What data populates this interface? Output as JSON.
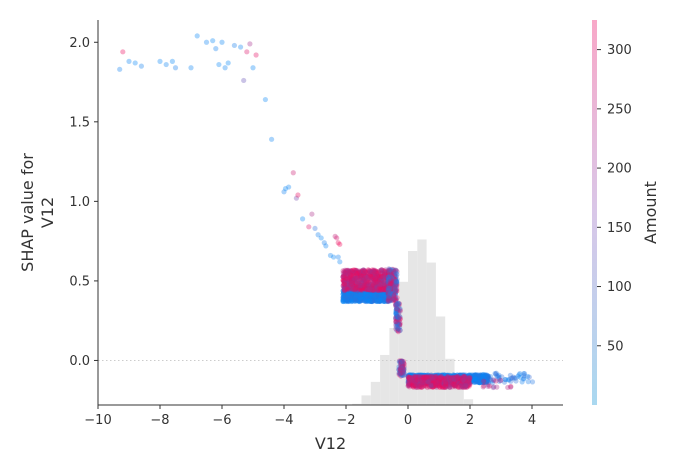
{
  "chart_data": {
    "type": "scatter",
    "title": "",
    "xlabel": "V12",
    "ylabel_lines": [
      "SHAP value for",
      "V12"
    ],
    "xlim": [
      -10,
      5
    ],
    "ylim": [
      -0.28,
      2.14
    ],
    "x_ticks": [
      -10,
      -8,
      -6,
      -4,
      -2,
      0,
      2,
      4
    ],
    "y_ticks": [
      0.0,
      0.5,
      1.0,
      1.5,
      2.0
    ],
    "x_tick_labels": [
      "−10",
      "−8",
      "−6",
      "−4",
      "−2",
      "0",
      "2",
      "4"
    ],
    "y_tick_labels": [
      "0.0",
      "0.5",
      "1.0",
      "1.5",
      "2.0"
    ],
    "zero_line": true,
    "colorbar": {
      "label": "Amount",
      "range": [
        0,
        325
      ],
      "ticks": [
        50,
        100,
        150,
        200,
        250,
        300
      ],
      "tick_labels": [
        "50",
        "100",
        "150",
        "200",
        "250",
        "300"
      ],
      "colors": {
        "low": "#008bfb",
        "high": "#ff0052"
      }
    },
    "histogram": {
      "bins": [
        {
          "x0": -1.8,
          "x1": -1.5,
          "h": 0.003
        },
        {
          "x0": -1.5,
          "x1": -1.2,
          "h": 0.025
        },
        {
          "x0": -1.2,
          "x1": -0.9,
          "h": 0.06
        },
        {
          "x0": -0.9,
          "x1": -0.6,
          "h": 0.13
        },
        {
          "x0": -0.6,
          "x1": -0.3,
          "h": 0.2
        },
        {
          "x0": -0.3,
          "x1": 0.0,
          "h": 0.32
        },
        {
          "x0": 0.0,
          "x1": 0.3,
          "h": 0.4
        },
        {
          "x0": 0.3,
          "x1": 0.6,
          "h": 0.43
        },
        {
          "x0": 0.6,
          "x1": 0.9,
          "h": 0.37
        },
        {
          "x0": 0.9,
          "x1": 1.2,
          "h": 0.23
        },
        {
          "x0": 1.2,
          "x1": 1.5,
          "h": 0.12
        },
        {
          "x0": 1.5,
          "x1": 1.8,
          "h": 0.05
        },
        {
          "x0": 1.8,
          "x1": 2.1,
          "h": 0.015
        }
      ]
    },
    "points": [
      {
        "x": -9.3,
        "y": 1.83,
        "amount": 20
      },
      {
        "x": -9.2,
        "y": 1.94,
        "amount": 300
      },
      {
        "x": -9.0,
        "y": 1.88,
        "amount": 15
      },
      {
        "x": -8.8,
        "y": 1.87,
        "amount": 10
      },
      {
        "x": -8.6,
        "y": 1.85,
        "amount": 25
      },
      {
        "x": -8.0,
        "y": 1.88,
        "amount": 12
      },
      {
        "x": -7.8,
        "y": 1.86,
        "amount": 18
      },
      {
        "x": -7.6,
        "y": 1.88,
        "amount": 8
      },
      {
        "x": -7.5,
        "y": 1.84,
        "amount": 30
      },
      {
        "x": -7.0,
        "y": 1.84,
        "amount": 14
      },
      {
        "x": -6.8,
        "y": 2.04,
        "amount": 10
      },
      {
        "x": -6.5,
        "y": 2.0,
        "amount": 16
      },
      {
        "x": -6.3,
        "y": 2.01,
        "amount": 9
      },
      {
        "x": -6.2,
        "y": 1.96,
        "amount": 22
      },
      {
        "x": -6.1,
        "y": 1.86,
        "amount": 11
      },
      {
        "x": -6.0,
        "y": 2.0,
        "amount": 13
      },
      {
        "x": -5.9,
        "y": 1.84,
        "amount": 19
      },
      {
        "x": -5.8,
        "y": 1.87,
        "amount": 7
      },
      {
        "x": -5.6,
        "y": 1.98,
        "amount": 28
      },
      {
        "x": -5.4,
        "y": 1.97,
        "amount": 17
      },
      {
        "x": -5.3,
        "y": 1.76,
        "amount": 130
      },
      {
        "x": -5.2,
        "y": 1.94,
        "amount": 280
      },
      {
        "x": -5.1,
        "y": 1.99,
        "amount": 210
      },
      {
        "x": -5.0,
        "y": 1.84,
        "amount": 10
      },
      {
        "x": -4.9,
        "y": 1.92,
        "amount": 290
      },
      {
        "x": -4.6,
        "y": 1.64,
        "amount": 12
      },
      {
        "x": -4.4,
        "y": 1.39,
        "amount": 15
      },
      {
        "x": -4.0,
        "y": 1.06,
        "amount": 20
      },
      {
        "x": -3.95,
        "y": 1.08,
        "amount": 9
      },
      {
        "x": -3.85,
        "y": 1.09,
        "amount": 14
      },
      {
        "x": -3.7,
        "y": 1.18,
        "amount": 260
      },
      {
        "x": -3.6,
        "y": 1.02,
        "amount": 150
      },
      {
        "x": -3.55,
        "y": 1.04,
        "amount": 300
      },
      {
        "x": -3.4,
        "y": 0.89,
        "amount": 10
      },
      {
        "x": -3.2,
        "y": 0.84,
        "amount": 280
      },
      {
        "x": -3.1,
        "y": 0.92,
        "amount": 220
      },
      {
        "x": -3.0,
        "y": 0.83,
        "amount": 60
      },
      {
        "x": -2.9,
        "y": 0.79,
        "amount": 25
      },
      {
        "x": -2.8,
        "y": 0.77,
        "amount": 12
      },
      {
        "x": -2.7,
        "y": 0.74,
        "amount": 30
      },
      {
        "x": -2.65,
        "y": 0.72,
        "amount": 16
      },
      {
        "x": -2.5,
        "y": 0.66,
        "amount": 18
      },
      {
        "x": -2.4,
        "y": 0.65,
        "amount": 10
      },
      {
        "x": -2.35,
        "y": 0.78,
        "amount": 250
      },
      {
        "x": -2.3,
        "y": 0.77,
        "amount": 270
      },
      {
        "x": -2.25,
        "y": 0.74,
        "amount": 300
      },
      {
        "x": -2.2,
        "y": 0.73,
        "amount": 310
      },
      {
        "x": -2.25,
        "y": 0.65,
        "amount": 20
      },
      {
        "x": -2.2,
        "y": 0.62,
        "amount": 14
      }
    ],
    "dense_clusters": [
      {
        "x_range": [
          -2.1,
          -0.55
        ],
        "y_range": [
          0.37,
          0.46
        ],
        "amount_range": [
          0,
          60
        ],
        "count": 900
      },
      {
        "x_range": [
          -2.1,
          -0.55
        ],
        "y_range": [
          0.44,
          0.57
        ],
        "amount_range": [
          180,
          325
        ],
        "count": 700
      },
      {
        "x_range": [
          -0.65,
          -0.35
        ],
        "y_range": [
          0.37,
          0.58
        ],
        "amount_range": [
          0,
          325
        ],
        "count": 180
      },
      {
        "x_range": [
          -0.4,
          -0.25
        ],
        "y_range": [
          0.18,
          0.36
        ],
        "amount_range": [
          0,
          325
        ],
        "count": 80
      },
      {
        "x_range": [
          -0.3,
          -0.12
        ],
        "y_range": [
          -0.1,
          0.0
        ],
        "amount_range": [
          0,
          325
        ],
        "count": 80
      },
      {
        "x_range": [
          0.0,
          2.6
        ],
        "y_range": [
          -0.14,
          -0.09
        ],
        "amount_range": [
          0,
          60
        ],
        "count": 900
      },
      {
        "x_range": [
          0.0,
          2.0
        ],
        "y_range": [
          -0.17,
          -0.1
        ],
        "amount_range": [
          180,
          325
        ],
        "count": 500
      },
      {
        "x_range": [
          2.4,
          4.2
        ],
        "y_range": [
          -0.14,
          -0.08
        ],
        "amount_range": [
          0,
          80
        ],
        "count": 50
      },
      {
        "x_range": [
          2.4,
          3.4
        ],
        "y_range": [
          -0.17,
          -0.12
        ],
        "amount_range": [
          150,
          300
        ],
        "count": 15
      }
    ]
  }
}
